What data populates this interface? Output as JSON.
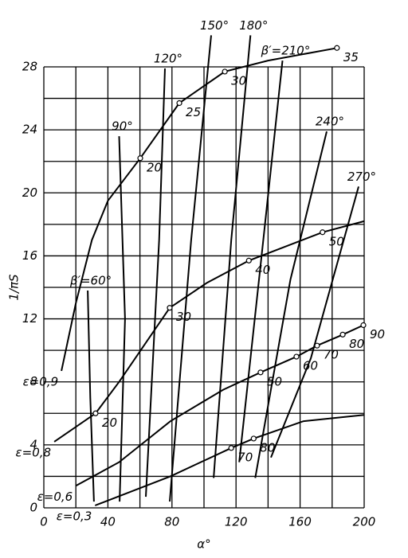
{
  "chart_data": {
    "type": "line",
    "x_label": "α°",
    "y_label": "1/πS",
    "xlim": [
      0,
      200
    ],
    "ylim": [
      0,
      28
    ],
    "xticks": [
      0,
      40,
      80,
      120,
      160,
      200
    ],
    "yticks": [
      0,
      4,
      8,
      12,
      16,
      20,
      24,
      28
    ],
    "xgrid": [
      20,
      60,
      100,
      140,
      180
    ],
    "ygrid": [
      2,
      6,
      10,
      14,
      18,
      22,
      26
    ],
    "grid": true,
    "color": "#000000",
    "series": [
      {
        "name": "ε=0,9",
        "x": [
          11,
          20,
          30,
          40,
          60.2,
          84.6,
          113,
          140,
          183
        ],
        "y": [
          8.7,
          13,
          17,
          19.5,
          22.2,
          25.7,
          27.7,
          28.4,
          29.2
        ],
        "points": [
          {
            "x": 60.2,
            "y": 22.2,
            "label": 20
          },
          {
            "x": 84.6,
            "y": 25.7,
            "label": 25
          },
          {
            "x": 113,
            "y": 27.7,
            "label": 30
          },
          {
            "x": 183,
            "y": 29.2,
            "label": 35
          }
        ]
      },
      {
        "name": "ε=0,8",
        "x": [
          6.5,
          32.3,
          47,
          78.6,
          102,
          128,
          174,
          200
        ],
        "y": [
          4.2,
          6,
          8,
          12.7,
          14.3,
          15.7,
          17.5,
          18.2
        ],
        "points": [
          {
            "x": 32.3,
            "y": 6,
            "label": 20
          },
          {
            "x": 78.6,
            "y": 12.7,
            "label": 30
          },
          {
            "x": 128,
            "y": 15.7,
            "label": 40
          },
          {
            "x": 174,
            "y": 17.5,
            "label": 50
          }
        ]
      },
      {
        "name": "ε=0,6",
        "x": [
          20,
          47,
          79,
          112,
          135.3,
          157.7,
          170.6,
          186.6,
          199.5
        ],
        "y": [
          1.4,
          2.9,
          5.5,
          7.5,
          8.6,
          9.6,
          10.3,
          11,
          11.6
        ],
        "points": [
          {
            "x": 135.3,
            "y": 8.6,
            "label": 50
          },
          {
            "x": 157.7,
            "y": 9.6,
            "label": 60
          },
          {
            "x": 170.6,
            "y": 10.3,
            "label": 70
          },
          {
            "x": 186.6,
            "y": 11,
            "label": 80
          },
          {
            "x": 199.5,
            "y": 11.6,
            "label": 90
          }
        ]
      },
      {
        "name": "ε=0,3",
        "x": [
          32,
          79,
          117,
          131,
          162,
          200
        ],
        "y": [
          0.15,
          2,
          3.8,
          4.4,
          5.5,
          5.9
        ],
        "points": [
          {
            "x": 117,
            "y": 3.8,
            "label": 70
          },
          {
            "x": 131,
            "y": 4.4,
            "label": 80
          }
        ]
      },
      {
        "name": "β′=60°",
        "x": [
          31.3,
          29,
          27.4
        ],
        "y": [
          0.4,
          7,
          13.8
        ]
      },
      {
        "name": "90°",
        "x": [
          47.3,
          50.7,
          47
        ],
        "y": [
          0.4,
          12,
          23.6
        ]
      },
      {
        "name": "120°",
        "x": [
          63.7,
          72,
          75.6
        ],
        "y": [
          0.7,
          17,
          27.9
        ]
      },
      {
        "name": "150°",
        "x": [
          78.6,
          92,
          104.5
        ],
        "y": [
          0.4,
          17,
          30
        ]
      },
      {
        "name": "180°",
        "x": [
          106,
          117,
          129
        ],
        "y": [
          1.9,
          17,
          30
        ]
      },
      {
        "name": "β′=210°",
        "x": [
          122,
          137,
          149
        ],
        "y": [
          2.9,
          17,
          28.4
        ]
      },
      {
        "name": "240°",
        "x": [
          132,
          154,
          176.6
        ],
        "y": [
          1.9,
          14.5,
          23.9
        ]
      },
      {
        "name": "270°",
        "x": [
          141.8,
          166.7,
          196.5
        ],
        "y": [
          3.2,
          9.5,
          20.4
        ]
      }
    ]
  }
}
